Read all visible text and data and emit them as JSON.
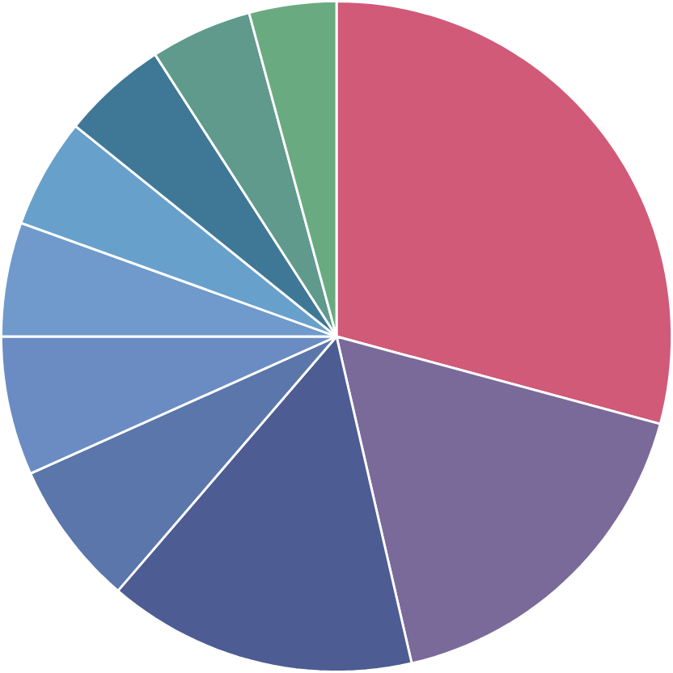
{
  "chart_data": {
    "type": "pie",
    "categories": [
      null,
      null,
      null,
      null,
      null,
      null,
      null,
      null,
      null,
      null
    ],
    "values": [
      29.2,
      17.2,
      14.9,
      7.0,
      6.7,
      5.5,
      5.3,
      5.1,
      4.9,
      4.2
    ],
    "colors": [
      "#d05a78",
      "#7a6a9a",
      "#4d5c92",
      "#5a76aa",
      "#6a8cc2",
      "#6f9acb",
      "#68a0cc",
      "#3f7896",
      "#5f9a8c",
      "#6aaa80"
    ]
  }
}
